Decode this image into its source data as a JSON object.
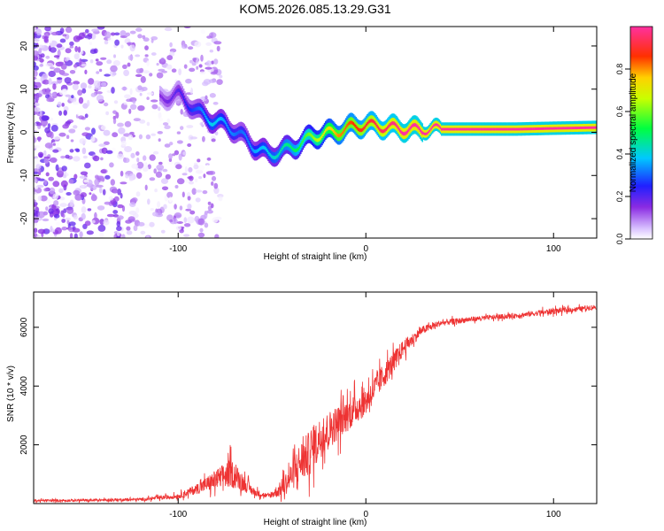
{
  "title": "KOM5.2026.085.13.29.G31",
  "chart_data": [
    {
      "type": "heatmap",
      "xlabel": "Height of straight line (km)",
      "ylabel": "Frequency (Hz)",
      "xlim": [
        -177,
        123
      ],
      "ylim": [
        -24.5,
        24.5
      ],
      "xticks": [
        -100,
        0,
        100
      ],
      "yticks": [
        -20,
        -10,
        0,
        10,
        20
      ],
      "colorbar": {
        "label": "Normalized spectral amplitude",
        "range": [
          0,
          1
        ],
        "ticks": [
          "0.0",
          "0.2",
          "0.4",
          "0.6",
          "0.8"
        ]
      },
      "ridge": {
        "x": [
          -110,
          -100,
          -90,
          -82,
          -75,
          -68,
          -60,
          -52,
          -45,
          -38,
          -30,
          -22,
          -15,
          -8,
          0,
          10,
          20,
          30,
          50,
          80,
          100,
          123
        ],
        "freq": [
          8,
          9,
          5,
          3,
          2,
          0,
          -3,
          -5,
          -4,
          -3,
          -1,
          0,
          0.5,
          1.5,
          2,
          1.5,
          1,
          0.8,
          0.8,
          0.8,
          1.0,
          1.2
        ],
        "amplitude": [
          0.15,
          0.2,
          0.3,
          0.4,
          0.35,
          0.3,
          0.35,
          0.4,
          0.45,
          0.5,
          0.6,
          0.7,
          0.8,
          0.85,
          0.9,
          0.95,
          1.0,
          1.0,
          1.0,
          1.0,
          1.0,
          1.0
        ]
      }
    },
    {
      "type": "line",
      "xlabel": "Height of straight line (km)",
      "ylabel": "SNR (10 * v/v)",
      "xlim": [
        -177,
        123
      ],
      "ylim": [
        0,
        7200
      ],
      "xticks": [
        -100,
        0,
        100
      ],
      "yticks": [
        2000,
        4000,
        6000
      ],
      "series": [
        {
          "name": "SNR",
          "color": "#ee3333",
          "x": [
            -177,
            -150,
            -120,
            -100,
            -90,
            -80,
            -72,
            -65,
            -60,
            -52,
            -45,
            -40,
            -35,
            -30,
            -25,
            -18,
            -10,
            0,
            10,
            20,
            30,
            40,
            60,
            80,
            100,
            110,
            123
          ],
          "base": [
            100,
            110,
            140,
            250,
            500,
            800,
            1050,
            700,
            400,
            250,
            500,
            900,
            1400,
            1700,
            2200,
            2600,
            3000,
            3500,
            4400,
            5300,
            5900,
            6150,
            6300,
            6400,
            6550,
            6600,
            6700
          ],
          "noise": [
            60,
            60,
            70,
            120,
            250,
            500,
            700,
            400,
            200,
            100,
            400,
            700,
            1000,
            1100,
            1000,
            900,
            800,
            700,
            600,
            400,
            200,
            150,
            120,
            120,
            150,
            120,
            120
          ]
        }
      ]
    }
  ]
}
